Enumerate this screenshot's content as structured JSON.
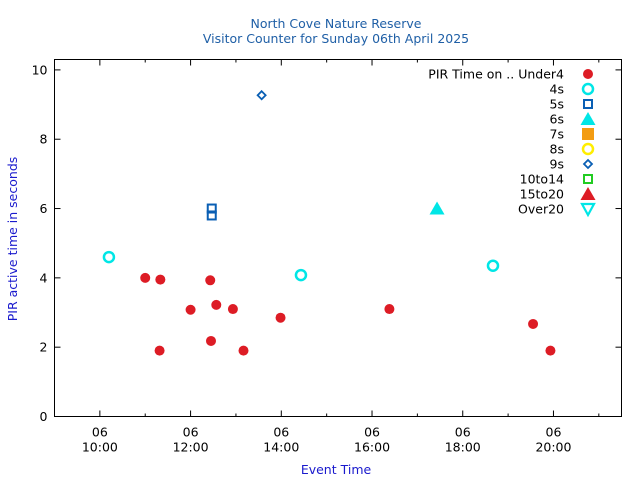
{
  "chart_data": {
    "type": "scatter",
    "title": "North Cove Nature Reserve",
    "subtitle": "Visitor Counter for Sunday 06th April 2025",
    "xlabel": "Event Time",
    "ylabel": "PIR active time in seconds",
    "xlim": [
      "2025-04-06T09:00",
      "2025-04-06T21:30"
    ],
    "ylim": [
      0,
      10.3
    ],
    "x_ticks": [
      {
        "value": "2025-04-06T10:00",
        "label_top": "06",
        "label_bottom": "10:00"
      },
      {
        "value": "2025-04-06T12:00",
        "label_top": "06",
        "label_bottom": "12:00"
      },
      {
        "value": "2025-04-06T14:00",
        "label_top": "06",
        "label_bottom": "14:00"
      },
      {
        "value": "2025-04-06T16:00",
        "label_top": "06",
        "label_bottom": "16:00"
      },
      {
        "value": "2025-04-06T18:00",
        "label_top": "06",
        "label_bottom": "18:00"
      },
      {
        "value": "2025-04-06T20:00",
        "label_top": "06",
        "label_bottom": "20:00"
      }
    ],
    "x_minor_ticks": [
      "2025-04-06T11:00",
      "2025-04-06T13:00",
      "2025-04-06T15:00",
      "2025-04-06T17:00",
      "2025-04-06T19:00",
      "2025-04-06T21:00"
    ],
    "y_ticks": [
      0,
      2,
      4,
      6,
      8,
      10
    ],
    "y_tick_labels": [
      "0",
      "2",
      "4",
      "6",
      "8",
      "10"
    ],
    "grid": false,
    "legend_position": "top-right",
    "series": [
      {
        "name": "PIR Time on .. Under4",
        "marker": "circle-filled",
        "color": "#dd1c25",
        "points": [
          {
            "x": "2025-04-06T11:00",
            "y": 4.0
          },
          {
            "x": "2025-04-06T11:20",
            "y": 3.95
          },
          {
            "x": "2025-04-06T11:19",
            "y": 1.9
          },
          {
            "x": "2025-04-06T12:00",
            "y": 3.08
          },
          {
            "x": "2025-04-06T12:26",
            "y": 3.93
          },
          {
            "x": "2025-04-06T12:27",
            "y": 2.18
          },
          {
            "x": "2025-04-06T12:34",
            "y": 3.22
          },
          {
            "x": "2025-04-06T12:56",
            "y": 3.1
          },
          {
            "x": "2025-04-06T13:10",
            "y": 1.9
          },
          {
            "x": "2025-04-06T13:59",
            "y": 2.85
          },
          {
            "x": "2025-04-06T16:23",
            "y": 3.1
          },
          {
            "x": "2025-04-06T19:33",
            "y": 2.67
          },
          {
            "x": "2025-04-06T19:56",
            "y": 1.9
          }
        ]
      },
      {
        "name": "4s",
        "marker": "circle-open",
        "color": "#00e6e6",
        "points": [
          {
            "x": "2025-04-06T10:12",
            "y": 4.6
          },
          {
            "x": "2025-04-06T14:26",
            "y": 4.08
          },
          {
            "x": "2025-04-06T18:40",
            "y": 4.35
          }
        ]
      },
      {
        "name": "5s",
        "marker": "square-open",
        "color": "#0a5fb4",
        "points": [
          {
            "x": "2025-04-06T12:28",
            "y": 6.0
          },
          {
            "x": "2025-04-06T12:28",
            "y": 5.8
          }
        ]
      },
      {
        "name": "6s",
        "marker": "triangle-filled",
        "color": "#00e6e6",
        "points": [
          {
            "x": "2025-04-06T17:26",
            "y": 6.0
          }
        ]
      },
      {
        "name": "7s",
        "marker": "square-filled",
        "color": "#f39c12",
        "points": []
      },
      {
        "name": "8s",
        "marker": "circle-open",
        "color": "#ffee00",
        "points": []
      },
      {
        "name": "9s",
        "marker": "diamond-open",
        "color": "#0a5fb4",
        "points": [
          {
            "x": "2025-04-06T13:34",
            "y": 9.27
          }
        ]
      },
      {
        "name": "10to14",
        "marker": "square-open",
        "color": "#22cc22",
        "points": []
      },
      {
        "name": "15to20",
        "marker": "triangle-filled",
        "color": "#dd1c25",
        "points": []
      },
      {
        "name": "Over20",
        "marker": "triangle-down-open",
        "color": "#00e6e6",
        "points": []
      }
    ]
  }
}
